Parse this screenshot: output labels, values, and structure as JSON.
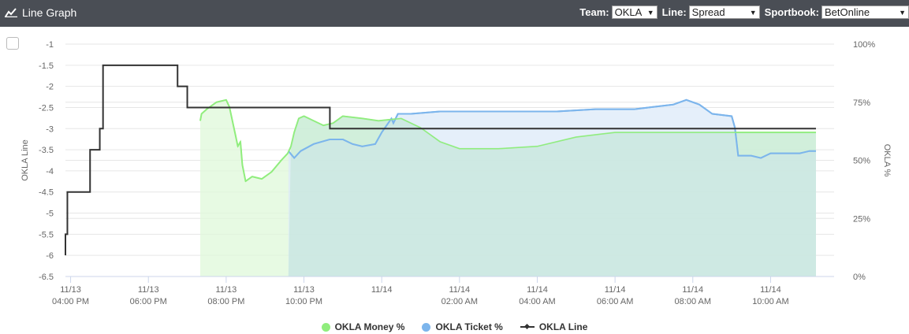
{
  "header": {
    "title": "Line Graph",
    "team_label": "Team:",
    "team_value": "OKLA",
    "line_label": "Line:",
    "line_value": "Spread",
    "sportbook_label": "Sportbook:",
    "sportbook_value": "BetOnline",
    "bg_color": "#4a4e55"
  },
  "chart_data": {
    "type": "line",
    "ylabel_left": "OKLA Line",
    "ylabel_right": "OKLA %",
    "yleft_range": [
      -6.5,
      -1
    ],
    "yleft_ticks": [
      "-1",
      "-1.5",
      "-2",
      "-2.5",
      "-3",
      "-3.5",
      "-4",
      "-4.5",
      "-5",
      "-5.5",
      "-6",
      "-6.5"
    ],
    "yright_range": [
      0,
      100
    ],
    "yright_ticks": [
      "0%",
      "25%",
      "50%",
      "75%",
      "100%"
    ],
    "x_range": [
      "11/13 15:52",
      "11/14 11:38"
    ],
    "x_ticks": [
      {
        "t": "11/13 16:00",
        "date": "11/13",
        "time": "04:00 PM"
      },
      {
        "t": "11/13 18:00",
        "date": "11/13",
        "time": "06:00 PM"
      },
      {
        "t": "11/13 20:00",
        "date": "11/13",
        "time": "08:00 PM"
      },
      {
        "t": "11/13 22:00",
        "date": "11/13",
        "time": "10:00 PM"
      },
      {
        "t": "11/14 00:00",
        "date": "11/14",
        "time": ""
      },
      {
        "t": "11/14 02:00",
        "date": "11/14",
        "time": "02:00 AM"
      },
      {
        "t": "11/14 04:00",
        "date": "11/14",
        "time": "04:00 AM"
      },
      {
        "t": "11/14 06:00",
        "date": "11/14",
        "time": "06:00 AM"
      },
      {
        "t": "11/14 08:00",
        "date": "11/14",
        "time": "08:00 AM"
      },
      {
        "t": "11/14 10:00",
        "date": "11/14",
        "time": "10:00 AM"
      }
    ],
    "series": [
      {
        "name": "OKLA Money %",
        "color": "#90ed7d",
        "fill": "#dff8d9",
        "points": [
          [
            "11/13 19:20",
            67
          ],
          [
            "11/13 19:22",
            70
          ],
          [
            "11/13 19:30",
            72
          ],
          [
            "11/13 19:45",
            75
          ],
          [
            "11/13 20:00",
            76
          ],
          [
            "11/13 20:05",
            73
          ],
          [
            "11/13 20:15",
            60
          ],
          [
            "11/13 20:18",
            56
          ],
          [
            "11/13 20:22",
            58
          ],
          [
            "11/13 20:25",
            48
          ],
          [
            "11/13 20:30",
            41
          ],
          [
            "11/13 20:40",
            43
          ],
          [
            "11/13 20:55",
            42
          ],
          [
            "11/13 21:10",
            45
          ],
          [
            "11/13 21:25",
            50
          ],
          [
            "11/13 21:35",
            53
          ],
          [
            "11/13 21:40",
            56
          ],
          [
            "11/13 21:45",
            62
          ],
          [
            "11/13 21:52",
            68
          ],
          [
            "11/13 22:00",
            69
          ],
          [
            "11/13 22:15",
            67
          ],
          [
            "11/13 22:30",
            65
          ],
          [
            "11/13 22:45",
            66
          ],
          [
            "11/13 23:00",
            69
          ],
          [
            "11/13 23:30",
            68
          ],
          [
            "11/13 23:55",
            67
          ],
          [
            "11/14 00:30",
            68
          ],
          [
            "11/14 01:00",
            64
          ],
          [
            "11/14 01:30",
            58
          ],
          [
            "11/14 02:00",
            55
          ],
          [
            "11/14 03:00",
            55
          ],
          [
            "11/14 04:00",
            56
          ],
          [
            "11/14 05:00",
            60
          ],
          [
            "11/14 06:00",
            62
          ],
          [
            "11/14 07:00",
            62
          ],
          [
            "11/14 08:00",
            62
          ],
          [
            "11/14 09:00",
            62
          ],
          [
            "11/14 10:00",
            62
          ],
          [
            "11/14 11:10",
            62
          ]
        ]
      },
      {
        "name": "OKLA Ticket %",
        "color": "#7cb5ec",
        "fill": "#dce9f8",
        "points": [
          [
            "11/13 21:36",
            54
          ],
          [
            "11/13 21:45",
            51
          ],
          [
            "11/13 21:55",
            54
          ],
          [
            "11/13 22:15",
            57
          ],
          [
            "11/13 22:40",
            59
          ],
          [
            "11/13 23:00",
            59
          ],
          [
            "11/13 23:15",
            57
          ],
          [
            "11/13 23:30",
            56
          ],
          [
            "11/13 23:50",
            57
          ],
          [
            "11/14 00:00",
            62
          ],
          [
            "11/14 00:15",
            68
          ],
          [
            "11/14 00:18",
            66
          ],
          [
            "11/14 00:25",
            70
          ],
          [
            "11/14 00:45",
            70
          ],
          [
            "11/14 01:30",
            71
          ],
          [
            "11/14 02:30",
            71
          ],
          [
            "11/14 03:30",
            71
          ],
          [
            "11/14 04:30",
            71
          ],
          [
            "11/14 05:30",
            72
          ],
          [
            "11/14 06:00",
            72
          ],
          [
            "11/14 06:30",
            72
          ],
          [
            "11/14 07:00",
            73
          ],
          [
            "11/14 07:30",
            74
          ],
          [
            "11/14 07:50",
            76
          ],
          [
            "11/14 08:10",
            74
          ],
          [
            "11/14 08:30",
            70
          ],
          [
            "11/14 09:00",
            69
          ],
          [
            "11/14 09:05",
            64
          ],
          [
            "11/14 09:10",
            52
          ],
          [
            "11/14 09:30",
            52
          ],
          [
            "11/14 09:45",
            51
          ],
          [
            "11/14 10:00",
            53
          ],
          [
            "11/14 10:30",
            53
          ],
          [
            "11/14 10:45",
            53
          ],
          [
            "11/14 11:00",
            54
          ],
          [
            "11/14 11:10",
            54
          ]
        ]
      },
      {
        "name": "OKLA Line",
        "color": "#333333",
        "points": [
          [
            "11/13 15:52",
            -6.0
          ],
          [
            "11/13 15:52",
            -5.5
          ],
          [
            "11/13 15:55",
            -5.5
          ],
          [
            "11/13 15:55",
            -4.5
          ],
          [
            "11/13 16:30",
            -4.5
          ],
          [
            "11/13 16:30",
            -3.5
          ],
          [
            "11/13 16:45",
            -3.5
          ],
          [
            "11/13 16:45",
            -3.0
          ],
          [
            "11/13 16:50",
            -3.0
          ],
          [
            "11/13 16:50",
            -1.5
          ],
          [
            "11/13 18:45",
            -1.5
          ],
          [
            "11/13 18:45",
            -2.0
          ],
          [
            "11/13 19:00",
            -2.0
          ],
          [
            "11/13 19:00",
            -2.5
          ],
          [
            "11/13 22:40",
            -2.5
          ],
          [
            "11/13 22:40",
            -3.0
          ],
          [
            "11/14 11:10",
            -3.0
          ]
        ]
      }
    ],
    "legend_position": "bottom",
    "grid": true
  }
}
